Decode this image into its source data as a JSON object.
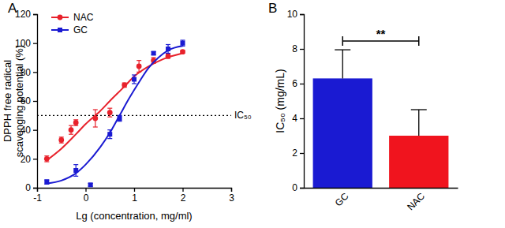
{
  "chart_data": [
    {
      "type": "scatter",
      "title": "A",
      "x_label": "Lg (concentration, mg/ml)",
      "y_label": [
        "DPPH free radical",
        "scavenging potential (%)"
      ],
      "xlim": [
        -1,
        3
      ],
      "xticks": [
        -1,
        0,
        1,
        2,
        3
      ],
      "ylim": [
        0,
        120
      ],
      "yticks": [
        0,
        20,
        40,
        60,
        80,
        100,
        120
      ],
      "legend": "top-left",
      "reference_line": {
        "value": 50,
        "label": "IC₅₀",
        "line_style": "dotted"
      },
      "series": [
        {
          "name": "NAC",
          "color": "#e8212b",
          "marker": "circle",
          "x": [
            -0.8,
            -0.5,
            -0.3,
            -0.2,
            0.2,
            0.5,
            0.8,
            1.1,
            1.4,
            1.7,
            2.0
          ],
          "values": [
            20,
            33,
            40,
            45,
            48,
            52,
            71,
            84,
            88,
            91,
            94
          ],
          "errors": [
            2,
            2,
            3,
            2,
            6,
            3,
            1.5,
            4,
            2,
            1.5,
            1
          ],
          "fit_x": [
            -0.8,
            -0.5,
            -0.2,
            0,
            0.3,
            0.5,
            0.8,
            1.0,
            1.3,
            1.6,
            2.0
          ],
          "fit_values": [
            19,
            27,
            37,
            44,
            53,
            60,
            70,
            77,
            84,
            89,
            93
          ]
        },
        {
          "name": "GC",
          "color": "#1a1ad2",
          "marker": "square",
          "x": [
            -0.8,
            -0.2,
            0.1,
            0.5,
            0.7,
            1.0,
            1.4,
            1.7,
            2.0
          ],
          "values": [
            4,
            12,
            2,
            37,
            48,
            75,
            93,
            96,
            100
          ],
          "errors": [
            1.5,
            4,
            1,
            3,
            2,
            3,
            1,
            3,
            2
          ],
          "fit_x": [
            -0.8,
            -0.5,
            -0.2,
            0,
            0.3,
            0.5,
            0.7,
            0.9,
            1.1,
            1.3,
            1.5,
            1.7,
            2.0
          ],
          "fit_values": [
            3,
            5,
            10,
            16,
            28,
            38,
            50,
            62,
            73,
            83,
            90,
            95,
            98
          ]
        }
      ]
    },
    {
      "type": "bar",
      "title": "B",
      "y_label": "IC₅₀ (mg/mL)",
      "categories": [
        "GC",
        "NAC"
      ],
      "values": [
        6.3,
        3.0
      ],
      "errors": [
        1.65,
        1.5
      ],
      "colors": [
        "#1a1ad2",
        "#f0141e"
      ],
      "ylim": [
        0,
        10
      ],
      "yticks": [
        0,
        2,
        4,
        6,
        8,
        10
      ],
      "significance": {
        "label": "**",
        "y": 8.45
      }
    }
  ]
}
